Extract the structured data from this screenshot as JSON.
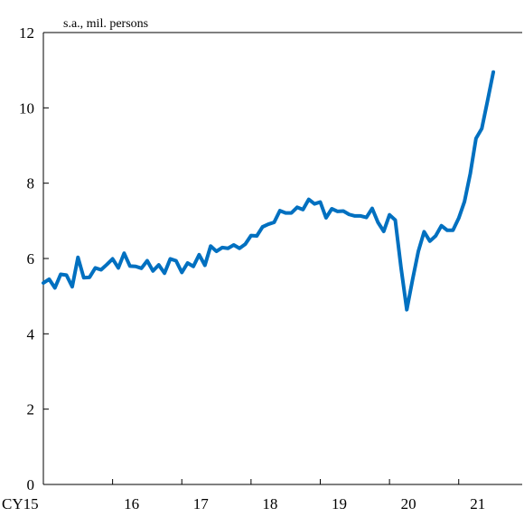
{
  "chart_data": {
    "type": "line",
    "unit_label": "s.a., mil. persons",
    "xlabel": "",
    "ylabel": "",
    "ylim": [
      0,
      12
    ],
    "y_ticks": [
      0,
      2,
      4,
      6,
      8,
      10,
      12
    ],
    "x_tick_labels": [
      "CY15",
      "16",
      "17",
      "18",
      "19",
      "20",
      "21"
    ],
    "x_tick_positions": [
      2015,
      2016,
      2017,
      2018,
      2019,
      2020,
      2021
    ],
    "x_start": 2015.0,
    "x_end": 2021.917,
    "grid": false,
    "legend": "none",
    "line_color": "#0070c0",
    "series": [
      {
        "x_start": 2015.0,
        "x_step_months": 1,
        "values": [
          5.35,
          5.45,
          5.22,
          5.58,
          5.56,
          5.25,
          6.03,
          5.49,
          5.5,
          5.75,
          5.7,
          5.84,
          5.99,
          5.75,
          6.14,
          5.8,
          5.79,
          5.74,
          5.94,
          5.67,
          5.83,
          5.61,
          5.99,
          5.94,
          5.63,
          5.88,
          5.79,
          6.1,
          5.82,
          6.33,
          6.19,
          6.29,
          6.27,
          6.36,
          6.27,
          6.38,
          6.61,
          6.6,
          6.84,
          6.91,
          6.96,
          7.27,
          7.21,
          7.21,
          7.36,
          7.3,
          7.57,
          7.45,
          7.5,
          7.08,
          7.32,
          7.25,
          7.26,
          7.17,
          7.13,
          7.13,
          7.09,
          7.33,
          6.96,
          6.72,
          7.16,
          7.02,
          5.76,
          4.64,
          5.44,
          6.19,
          6.71,
          6.46,
          6.6,
          6.87,
          6.75,
          6.75,
          7.07,
          7.51,
          8.25,
          9.19,
          9.45,
          10.19,
          10.95
        ]
      }
    ]
  }
}
